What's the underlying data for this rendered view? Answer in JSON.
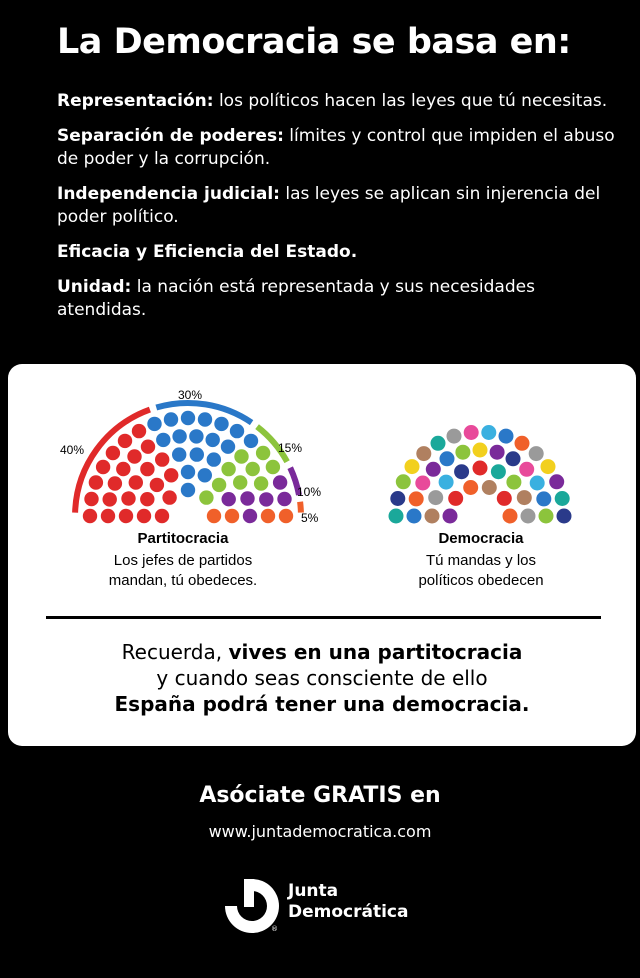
{
  "title": "La Democracia se basa en:",
  "points": [
    {
      "term": "Representación:",
      "text": " los políticos hacen las leyes que tú necesitas."
    },
    {
      "term": "Separación de poderes:",
      "text": " límites y control que impiden el abuso de poder y la corrupción."
    },
    {
      "term": "Independencia judicial:",
      "text": " las leyes se aplican sin injerencia del poder político."
    },
    {
      "term": "Eficacia y Eficiencia del Estado.",
      "text": ""
    },
    {
      "term": "Unidad:",
      "text": " la nación está representada y sus necesidades atendidas."
    }
  ],
  "partitocracia": {
    "heading": "Partitocracia",
    "caption_line1": "Los jefes de partidos",
    "caption_line2": "mandan, tú obedeces.",
    "shares": [
      {
        "label": "40%",
        "value": 40,
        "color": "#e02a2a"
      },
      {
        "label": "30%",
        "value": 30,
        "color": "#2a78c8"
      },
      {
        "label": "15%",
        "value": 15,
        "color": "#8cc43c"
      },
      {
        "label": "10%",
        "value": 10,
        "color": "#7a2a9a"
      },
      {
        "label": "5%",
        "value": 5,
        "color": "#f0602a"
      }
    ]
  },
  "democracia": {
    "heading": "Democracia",
    "caption_line1": "Tú mandas y los",
    "caption_line2": "políticos obedecen",
    "palette": [
      "#e02a2a",
      "#2a78c8",
      "#8cc43c",
      "#7a2a9a",
      "#f0602a",
      "#f2d01e",
      "#1aa89a",
      "#e84a9a",
      "#b08060",
      "#9a9a9a",
      "#3ab0e0",
      "#2a3a8a"
    ]
  },
  "reminder": {
    "line1_a": "Recuerda, ",
    "line1_b": "vives en una partitocracia",
    "line2": "y cuando seas consciente de ello",
    "line3": "España podrá tener una democracia."
  },
  "cta": "Asóciate GRATIS en",
  "url": "www.juntademocratica.com",
  "logo": {
    "line1": "Junta",
    "line2": "Democrática"
  }
}
